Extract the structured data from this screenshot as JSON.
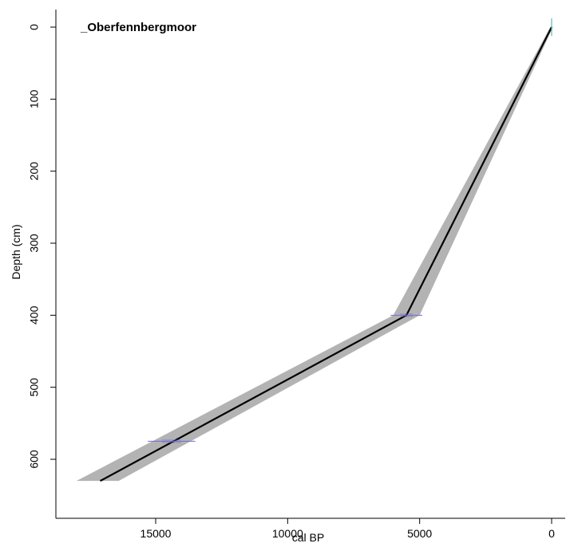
{
  "chart_data": {
    "type": "line",
    "title": "_Oberfennbergmoor",
    "xlabel": "cal BP",
    "ylabel": "Depth (cm)",
    "x_reversed": true,
    "y_reversed": true,
    "xlim": [
      18000,
      -500
    ],
    "ylim": [
      650,
      -15
    ],
    "x_ticks": [
      15000,
      10000,
      5000,
      0
    ],
    "y_ticks": [
      0,
      100,
      200,
      300,
      400,
      500,
      600
    ],
    "grid": false,
    "series": [
      {
        "role": "age-depth model",
        "color": "#000000",
        "points": [
          {
            "depth": 0,
            "age": 0
          },
          {
            "depth": 400,
            "age": 5500
          },
          {
            "depth": 630,
            "age": 17100
          }
        ]
      }
    ],
    "uncertainty_band": {
      "color": "#b3b3b3",
      "points": [
        {
          "depth": 0,
          "min": -50,
          "max": 50
        },
        {
          "depth": 400,
          "min": 5000,
          "max": 6000
        },
        {
          "depth": 630,
          "min": 16400,
          "max": 18000
        }
      ]
    },
    "dates": [
      {
        "depth": 0,
        "age": 0,
        "age_min": 0,
        "age_max": 0,
        "color": "#5fb3b3",
        "marker": "vertical"
      },
      {
        "depth": 400,
        "age": 5500,
        "age_min": 4900,
        "age_max": 6100,
        "color": "#7070d0",
        "marker": "horizontal"
      },
      {
        "depth": 575,
        "age": 14400,
        "age_min": 13500,
        "age_max": 15300,
        "color": "#7070d0",
        "marker": "horizontal"
      }
    ]
  }
}
